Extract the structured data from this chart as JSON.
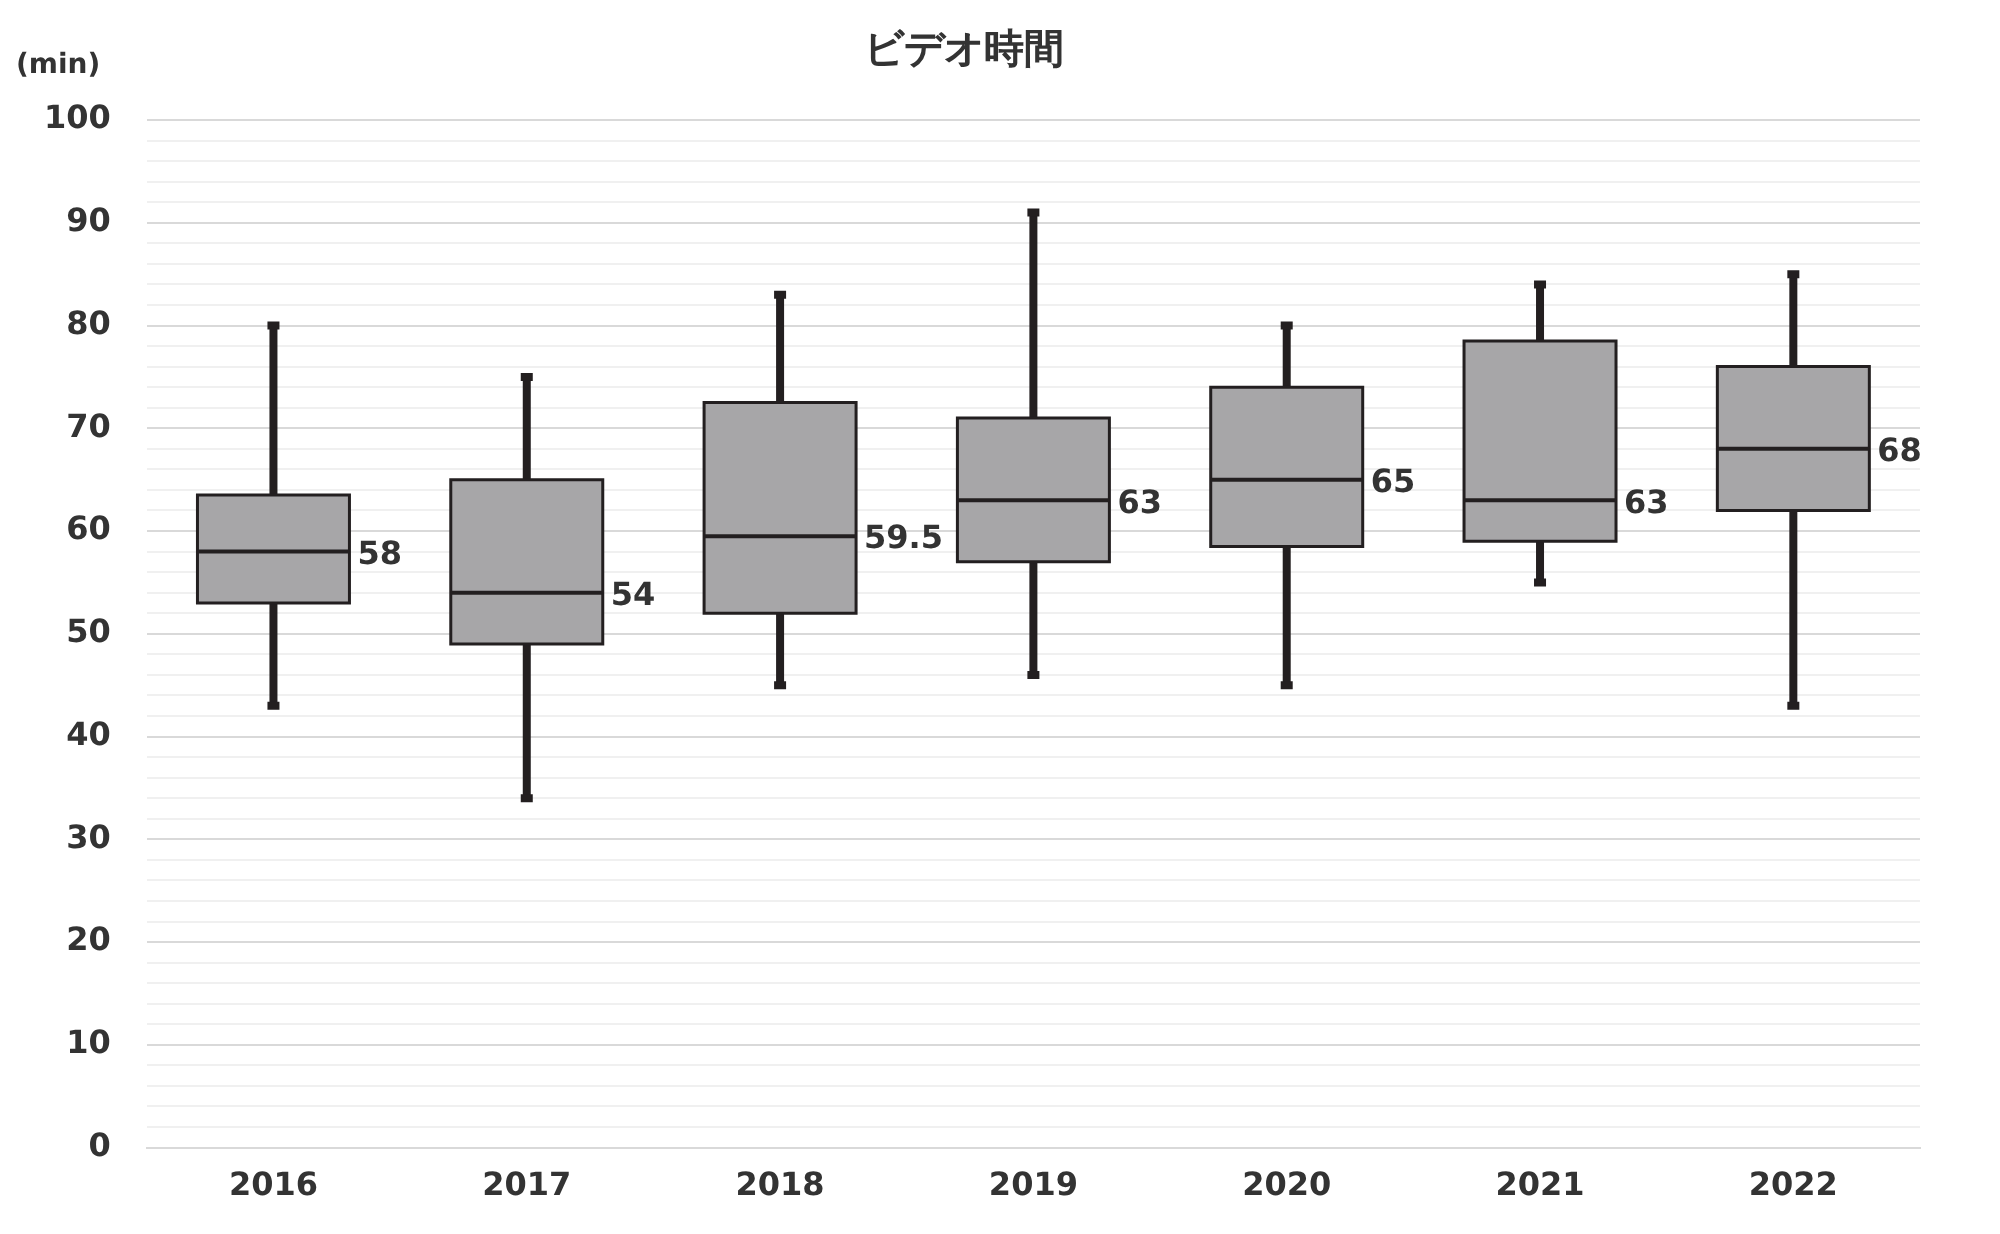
{
  "chart_data": {
    "type": "box",
    "title": "ビデオ時間",
    "ylabel": "(min)",
    "categories": [
      "2016",
      "2017",
      "2018",
      "2019",
      "2020",
      "2021",
      "2022"
    ],
    "series": [
      {
        "color": "#a7a6a8",
        "value_labels": [
          "58",
          "54",
          "59.5",
          "63",
          "65",
          "63",
          "68"
        ],
        "boxes": [
          {
            "low": 43,
            "q1": 53,
            "median": 58,
            "q3": 63.5,
            "high": 80
          },
          {
            "low": 34,
            "q1": 49,
            "median": 54,
            "q3": 65,
            "high": 75
          },
          {
            "low": 45,
            "q1": 52,
            "median": 59.5,
            "q3": 72.5,
            "high": 83
          },
          {
            "low": 46,
            "q1": 57,
            "median": 63,
            "q3": 71,
            "high": 91
          },
          {
            "low": 45,
            "q1": 58.5,
            "median": 65,
            "q3": 74,
            "high": 80
          },
          {
            "low": 55,
            "q1": 59,
            "median": 63,
            "q3": 78.5,
            "high": 84
          },
          {
            "low": 43,
            "q1": 62,
            "median": 68,
            "q3": 76,
            "high": 85
          }
        ]
      }
    ],
    "ylim": [
      0,
      100
    ],
    "yticks": [
      0,
      {
        "value": 2,
        "label": null
      },
      {
        "value": 4,
        "label": null
      },
      {
        "value": 6,
        "label": null
      },
      {
        "value": 8,
        "label": null
      },
      10,
      {
        "value": 12,
        "label": null
      },
      {
        "value": 14,
        "label": null
      },
      {
        "value": 16,
        "label": null
      },
      {
        "value": 18,
        "label": null
      },
      20,
      {
        "value": 22,
        "label": null
      },
      {
        "value": 24,
        "label": null
      },
      {
        "value": 26,
        "label": null
      },
      {
        "value": 28,
        "label": null
      },
      30,
      {
        "value": 32,
        "label": null
      },
      {
        "value": 34,
        "label": null
      },
      {
        "value": 36,
        "label": null
      },
      {
        "value": 38,
        "label": null
      },
      40,
      {
        "value": 42,
        "label": null
      },
      {
        "value": 44,
        "label": null
      },
      {
        "value": 46,
        "label": null
      },
      {
        "value": 48,
        "label": null
      },
      50,
      {
        "value": 52,
        "label": null
      },
      {
        "value": 54,
        "label": null
      },
      {
        "value": 56,
        "label": null
      },
      {
        "value": 58,
        "label": null
      },
      60,
      {
        "value": 62,
        "label": null
      },
      {
        "value": 64,
        "label": null
      },
      {
        "value": 66,
        "label": null
      },
      {
        "value": 68,
        "label": null
      },
      70,
      {
        "value": 72,
        "label": null
      },
      {
        "value": 74,
        "label": null
      },
      {
        "value": 76,
        "label": null
      },
      {
        "value": 78,
        "label": null
      },
      80,
      {
        "value": 82,
        "label": null
      },
      {
        "value": 84,
        "label": null
      },
      {
        "value": 86,
        "label": null
      },
      {
        "value": 88,
        "label": null
      },
      90,
      {
        "value": 92,
        "label": null
      },
      {
        "value": 94,
        "label": null
      },
      {
        "value": 96,
        "label": null
      },
      {
        "value": 98,
        "label": null
      },
      100
    ],
    "grid": "y"
  }
}
